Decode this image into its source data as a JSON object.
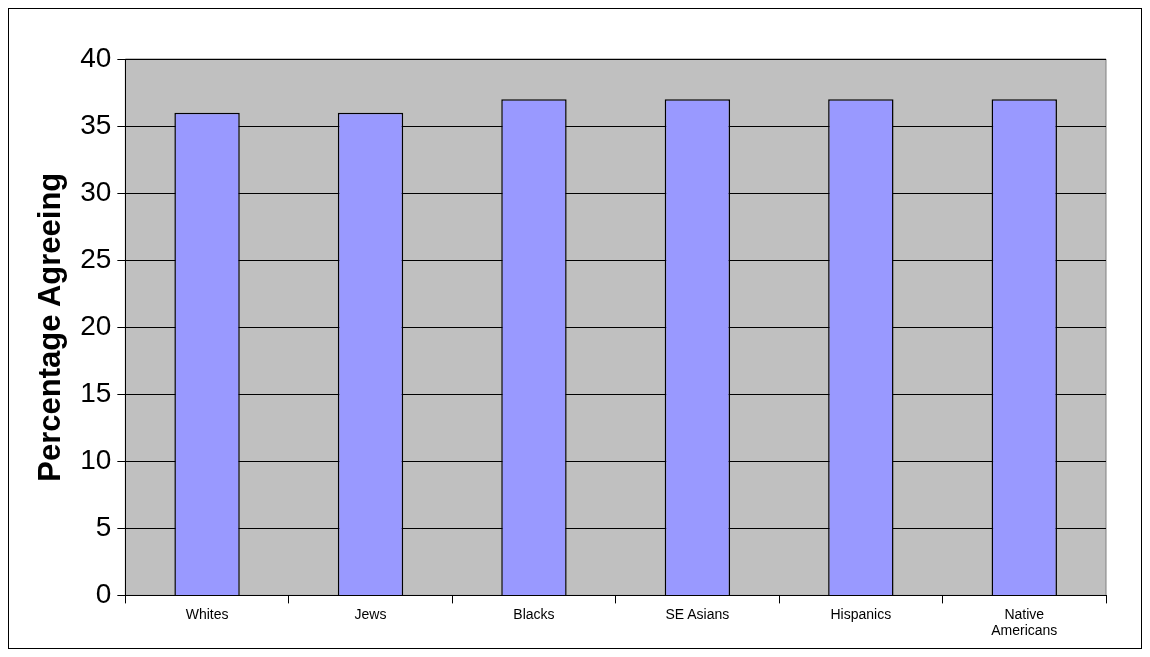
{
  "chart_data": {
    "type": "bar",
    "ylabel": "Percentage Agreeing",
    "categories": [
      "Whites",
      "Jews",
      "Blacks",
      "SE Asians",
      "Hispanics",
      "Native Americans"
    ],
    "values": [
      36,
      36,
      37,
      37,
      37,
      37
    ],
    "color": "#9999ff",
    "ylim": [
      0,
      40
    ],
    "yticks": [
      0,
      5,
      10,
      15,
      20,
      25,
      30,
      35,
      40
    ],
    "grid": "y"
  }
}
